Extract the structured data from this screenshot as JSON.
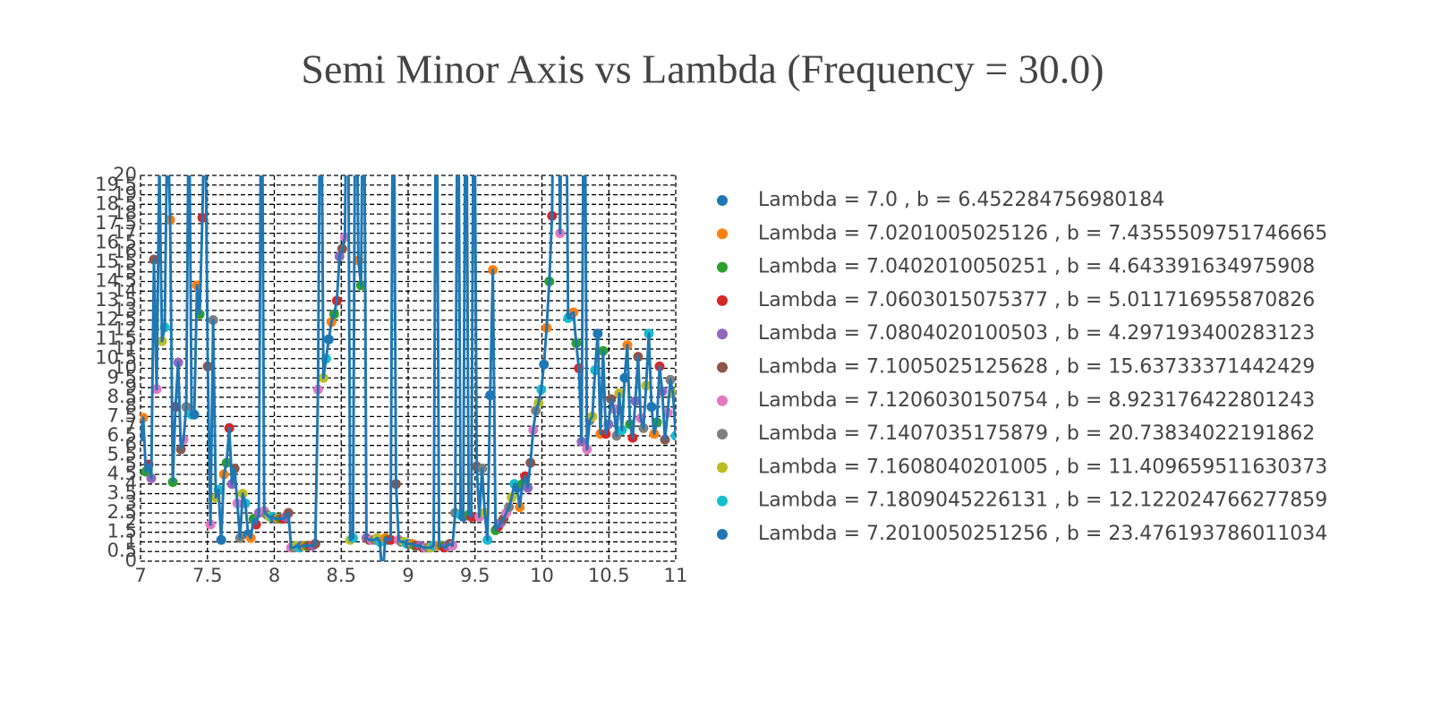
{
  "chart_data": {
    "type": "line",
    "title": "Semi Minor Axis vs Lambda (Frequency = 30.0)",
    "line_color": "#1f77b4",
    "point_colors": [
      "#1f77b4",
      "#ff7f0e",
      "#2ca02c",
      "#d62728",
      "#9467bd",
      "#8c564b",
      "#e377c2",
      "#7f7f7f",
      "#bcbd22",
      "#17becf"
    ],
    "point_names": [
      "Lambda = 7.0 , b = 6.452284756980184",
      "Lambda = 7.0201005025126 , b = 7.4355509751746665",
      "Lambda = 7.0402010050251 , b = 4.643391634975908",
      "Lambda = 7.0603015075377 , b = 5.011716955870826",
      "Lambda = 7.0804020100503 , b = 4.297193400283123",
      "Lambda = 7.1005025125628 , b = 15.63733371442429",
      "Lambda = 7.1206030150754 , b = 8.923176422801243",
      "Lambda = 7.1407035175879 , b = 20.73834022191862",
      "Lambda = 7.1608040201005 , b = 11.409659511630373",
      "Lambda = 7.1809045226131 , b = 12.122024766277859",
      "Lambda = 7.2010050251256 , b = 23.476193786011034"
    ],
    "x": [
      7,
      7.0201,
      7.0402,
      7.0603,
      7.0804,
      7.1005,
      7.1206,
      7.1407,
      7.1608,
      7.1809,
      7.201,
      7.2211,
      7.2412,
      7.2613,
      7.2814,
      7.3015,
      7.3216,
      7.3417,
      7.3618,
      7.3819,
      7.402,
      7.4221,
      7.4422,
      7.4623,
      7.4824,
      7.5025,
      7.5226,
      7.5427,
      7.5628,
      7.5829,
      7.603,
      7.6231,
      7.6432,
      7.6633,
      7.6834,
      7.7035,
      7.7236,
      7.7437,
      7.7638,
      7.7839,
      7.804,
      7.8241,
      7.8442,
      7.8643,
      7.8844,
      7.9045,
      7.9246,
      7.9447,
      7.9648,
      7.9849,
      8.005,
      8.0251,
      8.0452,
      8.0653,
      8.0854,
      8.1055,
      8.1256,
      8.1457,
      8.1658,
      8.1859,
      8.206,
      8.2261,
      8.2462,
      8.2663,
      8.2864,
      8.3065,
      8.3266,
      8.3467,
      8.3668,
      8.3869,
      8.407,
      8.4271,
      8.4472,
      8.4673,
      8.4874,
      8.5075,
      8.5276,
      8.5477,
      8.5678,
      8.5879,
      8.608,
      8.6281,
      8.6482,
      8.6683,
      8.6884,
      8.7085,
      8.7286,
      8.7487,
      8.7688,
      8.7889,
      8.809,
      8.8291,
      8.8492,
      8.8693,
      8.8894,
      8.9095,
      8.9296,
      8.9497,
      8.9698,
      8.9899,
      9.0101,
      9.0302,
      9.0503,
      9.0704,
      9.0905,
      9.1106,
      9.1307,
      9.1508,
      9.1709,
      9.191,
      9.2111,
      9.2312,
      9.2513,
      9.2714,
      9.2915,
      9.3116,
      9.3317,
      9.3518,
      9.3719,
      9.392,
      9.4121,
      9.4322,
      9.4523,
      9.4724,
      9.4925,
      9.5126,
      9.5327,
      9.5528,
      9.5729,
      9.593,
      9.6131,
      9.6332,
      9.6533,
      9.6734,
      9.6935,
      9.7136,
      9.7337,
      9.7538,
      9.7739,
      9.794,
      9.8141,
      9.8342,
      9.8543,
      9.8744,
      9.8945,
      9.9146,
      9.9347,
      9.9548,
      9.9749,
      9.995,
      10.0151,
      10.0352,
      10.0553,
      10.0754,
      10.0955,
      10.1156,
      10.1357,
      10.1558,
      10.1759,
      10.196,
      10.2161,
      10.2362,
      10.2563,
      10.2764,
      10.2965,
      10.3166,
      10.3367,
      10.3568,
      10.3769,
      10.397,
      10.4171,
      10.4372,
      10.4573,
      10.4774,
      10.4975,
      10.5176,
      10.5377,
      10.5578,
      10.5779,
      10.598,
      10.6181,
      10.6382,
      10.6583,
      10.6784,
      10.6985,
      10.7186,
      10.7387,
      10.7588,
      10.7789,
      10.799,
      10.8191,
      10.8392,
      10.8593,
      10.8794,
      10.8995,
      10.9196,
      10.9397,
      10.9598,
      10.9799,
      11
    ],
    "values": [
      6.452284756980184,
      7.4355509751746665,
      4.643391634975908,
      5.011716955870826,
      4.297193400283123,
      15.63733371442429,
      8.923176422801243,
      20.73834022191862,
      11.409659511630373,
      12.122024766277859,
      23.476193786011034,
      17.7,
      4.1,
      8.0,
      10.3,
      5.8,
      6.3,
      8.0,
      25,
      7.6,
      7.6,
      14.3,
      12.8,
      17.8,
      25,
      10.1,
      1.9,
      12.5,
      3.3,
      3.7,
      1.1,
      4.5,
      5.1,
      6.9,
      4.0,
      4.8,
      3.0,
      1.2,
      3.5,
      3.0,
      1.4,
      1.2,
      2.2,
      1.9,
      2.5,
      30,
      2.6,
      2.4,
      2.3,
      2.3,
      2.2,
      2.2,
      2.2,
      2.2,
      2.3,
      2.5,
      0.7,
      0.7,
      0.8,
      0.7,
      0.8,
      0.8,
      0.8,
      0.8,
      0.8,
      0.9,
      8.9,
      30,
      9.5,
      10.5,
      11.5,
      12.4,
      12.8,
      13.5,
      15.8,
      16.2,
      16.8,
      30,
      1.1,
      1.2,
      30,
      15.6,
      14.3,
      30,
      1.2,
      1.1,
      1.1,
      1.1,
      1.2,
      1.0,
      -1,
      1.2,
      1.1,
      1.1,
      30,
      4.0,
      1.1,
      1.0,
      1.0,
      0.9,
      0.9,
      0.9,
      0.8,
      0.8,
      0.8,
      0.7,
      0.7,
      0.7,
      0.7,
      0.8,
      30,
      0.8,
      0.8,
      0.7,
      0.8,
      0.9,
      0.8,
      2.5,
      30,
      2.4,
      2.3,
      30,
      2.4,
      2.3,
      30,
      4.9,
      2.3,
      4.8,
      2.5,
      1.1,
      8.6,
      15.1,
      1.6,
      1.8,
      2.0,
      2.2,
      2.5,
      2.8,
      3.3,
      4.0,
      3.8,
      2.8,
      4.0,
      4.4,
      3.8,
      5.1,
      6.8,
      7.8,
      8.2,
      8.9,
      10.2,
      12.1,
      14.5,
      17.9,
      30,
      30,
      17.0,
      30,
      30,
      12.6,
      12.8,
      12.9,
      11.3,
      10.0,
      6.2,
      30,
      5.8,
      7.3,
      7.5,
      9.9,
      11.8,
      6.6,
      10.9,
      6.6,
      7.1,
      8.4,
      7.9,
      6.5,
      8.7,
      6.8,
      9.5,
      11.2,
      7.1,
      6.4,
      8.3,
      10.6,
      7.4,
      6.9,
      9.1,
      11.8,
      8.0,
      6.6,
      7.2,
      10.1,
      8.8,
      6.3,
      7.7,
      9.4,
      8.7,
      6.5
    ],
    "xlim": [
      7,
      11
    ],
    "ylim": [
      0,
      20
    ],
    "xticks": [
      7,
      7.5,
      8,
      8.5,
      9,
      9.5,
      10,
      10.5,
      11
    ],
    "yticks": [
      0,
      0.5,
      1,
      1.5,
      2,
      2.5,
      3,
      3.5,
      4,
      4.5,
      5,
      5.5,
      6,
      6.5,
      7,
      7.5,
      8,
      8.5,
      9,
      9.5,
      10,
      10.5,
      11,
      11.5,
      12,
      12.5,
      13,
      13.5,
      14,
      14.5,
      15,
      15.5,
      16,
      16.5,
      17,
      17.5,
      18,
      18.5,
      19,
      19.5,
      20
    ],
    "grid": true
  }
}
